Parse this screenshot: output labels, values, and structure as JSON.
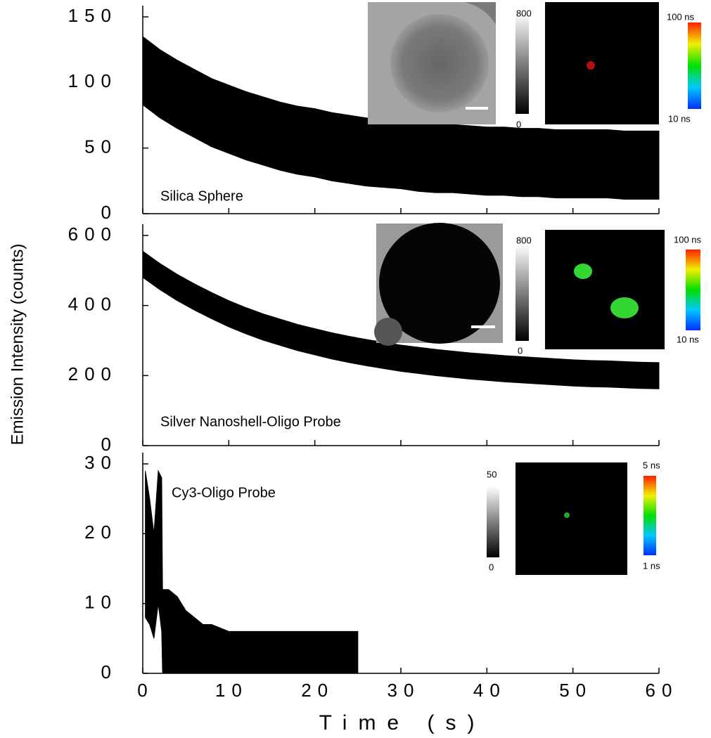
{
  "chart_data": [
    {
      "type": "band",
      "label": "Silica Sphere",
      "x": [
        0,
        2,
        4,
        6,
        8,
        10,
        12,
        14,
        16,
        18,
        20,
        22,
        24,
        26,
        28,
        30,
        32,
        34,
        36,
        38,
        40,
        42,
        44,
        46,
        48,
        50,
        52,
        54,
        56,
        58,
        60
      ],
      "high": [
        135,
        125,
        117,
        110,
        103,
        98,
        93,
        89,
        85,
        82,
        80,
        77,
        75,
        73,
        72,
        71,
        69,
        68,
        68,
        67,
        66,
        66,
        65,
        65,
        64,
        64,
        64,
        64,
        63,
        63,
        63
      ],
      "low": [
        83,
        73,
        65,
        58,
        51,
        46,
        41,
        37,
        33,
        30,
        28,
        25,
        23,
        21,
        20,
        19,
        17,
        16,
        16,
        15,
        14,
        14,
        13,
        13,
        12,
        12,
        12,
        12,
        11,
        11,
        11
      ],
      "color": "#000000",
      "xlim": [
        0,
        60
      ],
      "xticks": [
        0,
        10,
        20,
        30,
        40,
        50,
        60
      ],
      "ylim": [
        0,
        150
      ],
      "yticks": [
        0,
        50,
        100,
        150
      ],
      "gray_scale": [
        800,
        0
      ],
      "lifetime_scale": [
        "100 ns",
        "10 ns"
      ]
    },
    {
      "type": "band",
      "label": "Silver Nanoshell-Oligo Probe",
      "ylabel": "Emission Intensity (counts)",
      "x": [
        0,
        2,
        4,
        6,
        8,
        10,
        12,
        14,
        16,
        18,
        20,
        22,
        24,
        26,
        28,
        30,
        32,
        34,
        36,
        38,
        40,
        42,
        44,
        46,
        48,
        50,
        52,
        54,
        56,
        58,
        60
      ],
      "high": [
        555,
        520,
        489,
        462,
        437,
        414,
        394,
        376,
        361,
        346,
        334,
        322,
        312,
        303,
        295,
        287,
        281,
        275,
        270,
        265,
        261,
        257,
        254,
        251,
        248,
        245,
        243,
        242,
        240,
        238,
        237
      ],
      "low": [
        480,
        445,
        414,
        387,
        362,
        339,
        319,
        301,
        286,
        271,
        259,
        247,
        237,
        228,
        220,
        212,
        206,
        200,
        195,
        190,
        186,
        182,
        179,
        176,
        173,
        170,
        168,
        167,
        165,
        163,
        162
      ],
      "color": "#000000",
      "xlim": [
        0,
        60
      ],
      "xticks": [
        0,
        10,
        20,
        30,
        40,
        50,
        60
      ],
      "ylim": [
        0,
        600
      ],
      "yticks": [
        0,
        200,
        400,
        600
      ],
      "gray_scale": [
        800,
        0
      ],
      "lifetime_scale": [
        "100 ns",
        "10 ns"
      ]
    },
    {
      "type": "band",
      "label": "Cy3-Oligo Probe",
      "xlabel": "Time (s)",
      "x": [
        0.3,
        0.8,
        1.3,
        1.8,
        2.2,
        2.3,
        3,
        4,
        5,
        6,
        7,
        8,
        10,
        12,
        14,
        16,
        18,
        20,
        22,
        24,
        25
      ],
      "high": [
        29,
        25,
        20,
        29,
        28,
        12,
        12,
        11,
        9,
        8,
        7,
        7,
        6,
        6,
        6,
        6,
        6,
        6,
        6,
        6,
        6
      ],
      "low": [
        8,
        7,
        5,
        10,
        6,
        0,
        0,
        0,
        0,
        0,
        0,
        0,
        0,
        0,
        0,
        0,
        0,
        0,
        0,
        0,
        0
      ],
      "color": "#000000",
      "xlim": [
        0,
        60
      ],
      "xticks": [
        0,
        10,
        20,
        30,
        40,
        50,
        60
      ],
      "ylim": [
        0,
        30
      ],
      "yticks": [
        0,
        10,
        20,
        30
      ],
      "gray_scale": [
        50,
        0
      ],
      "lifetime_scale": [
        "5 ns",
        "1 ns"
      ]
    }
  ]
}
